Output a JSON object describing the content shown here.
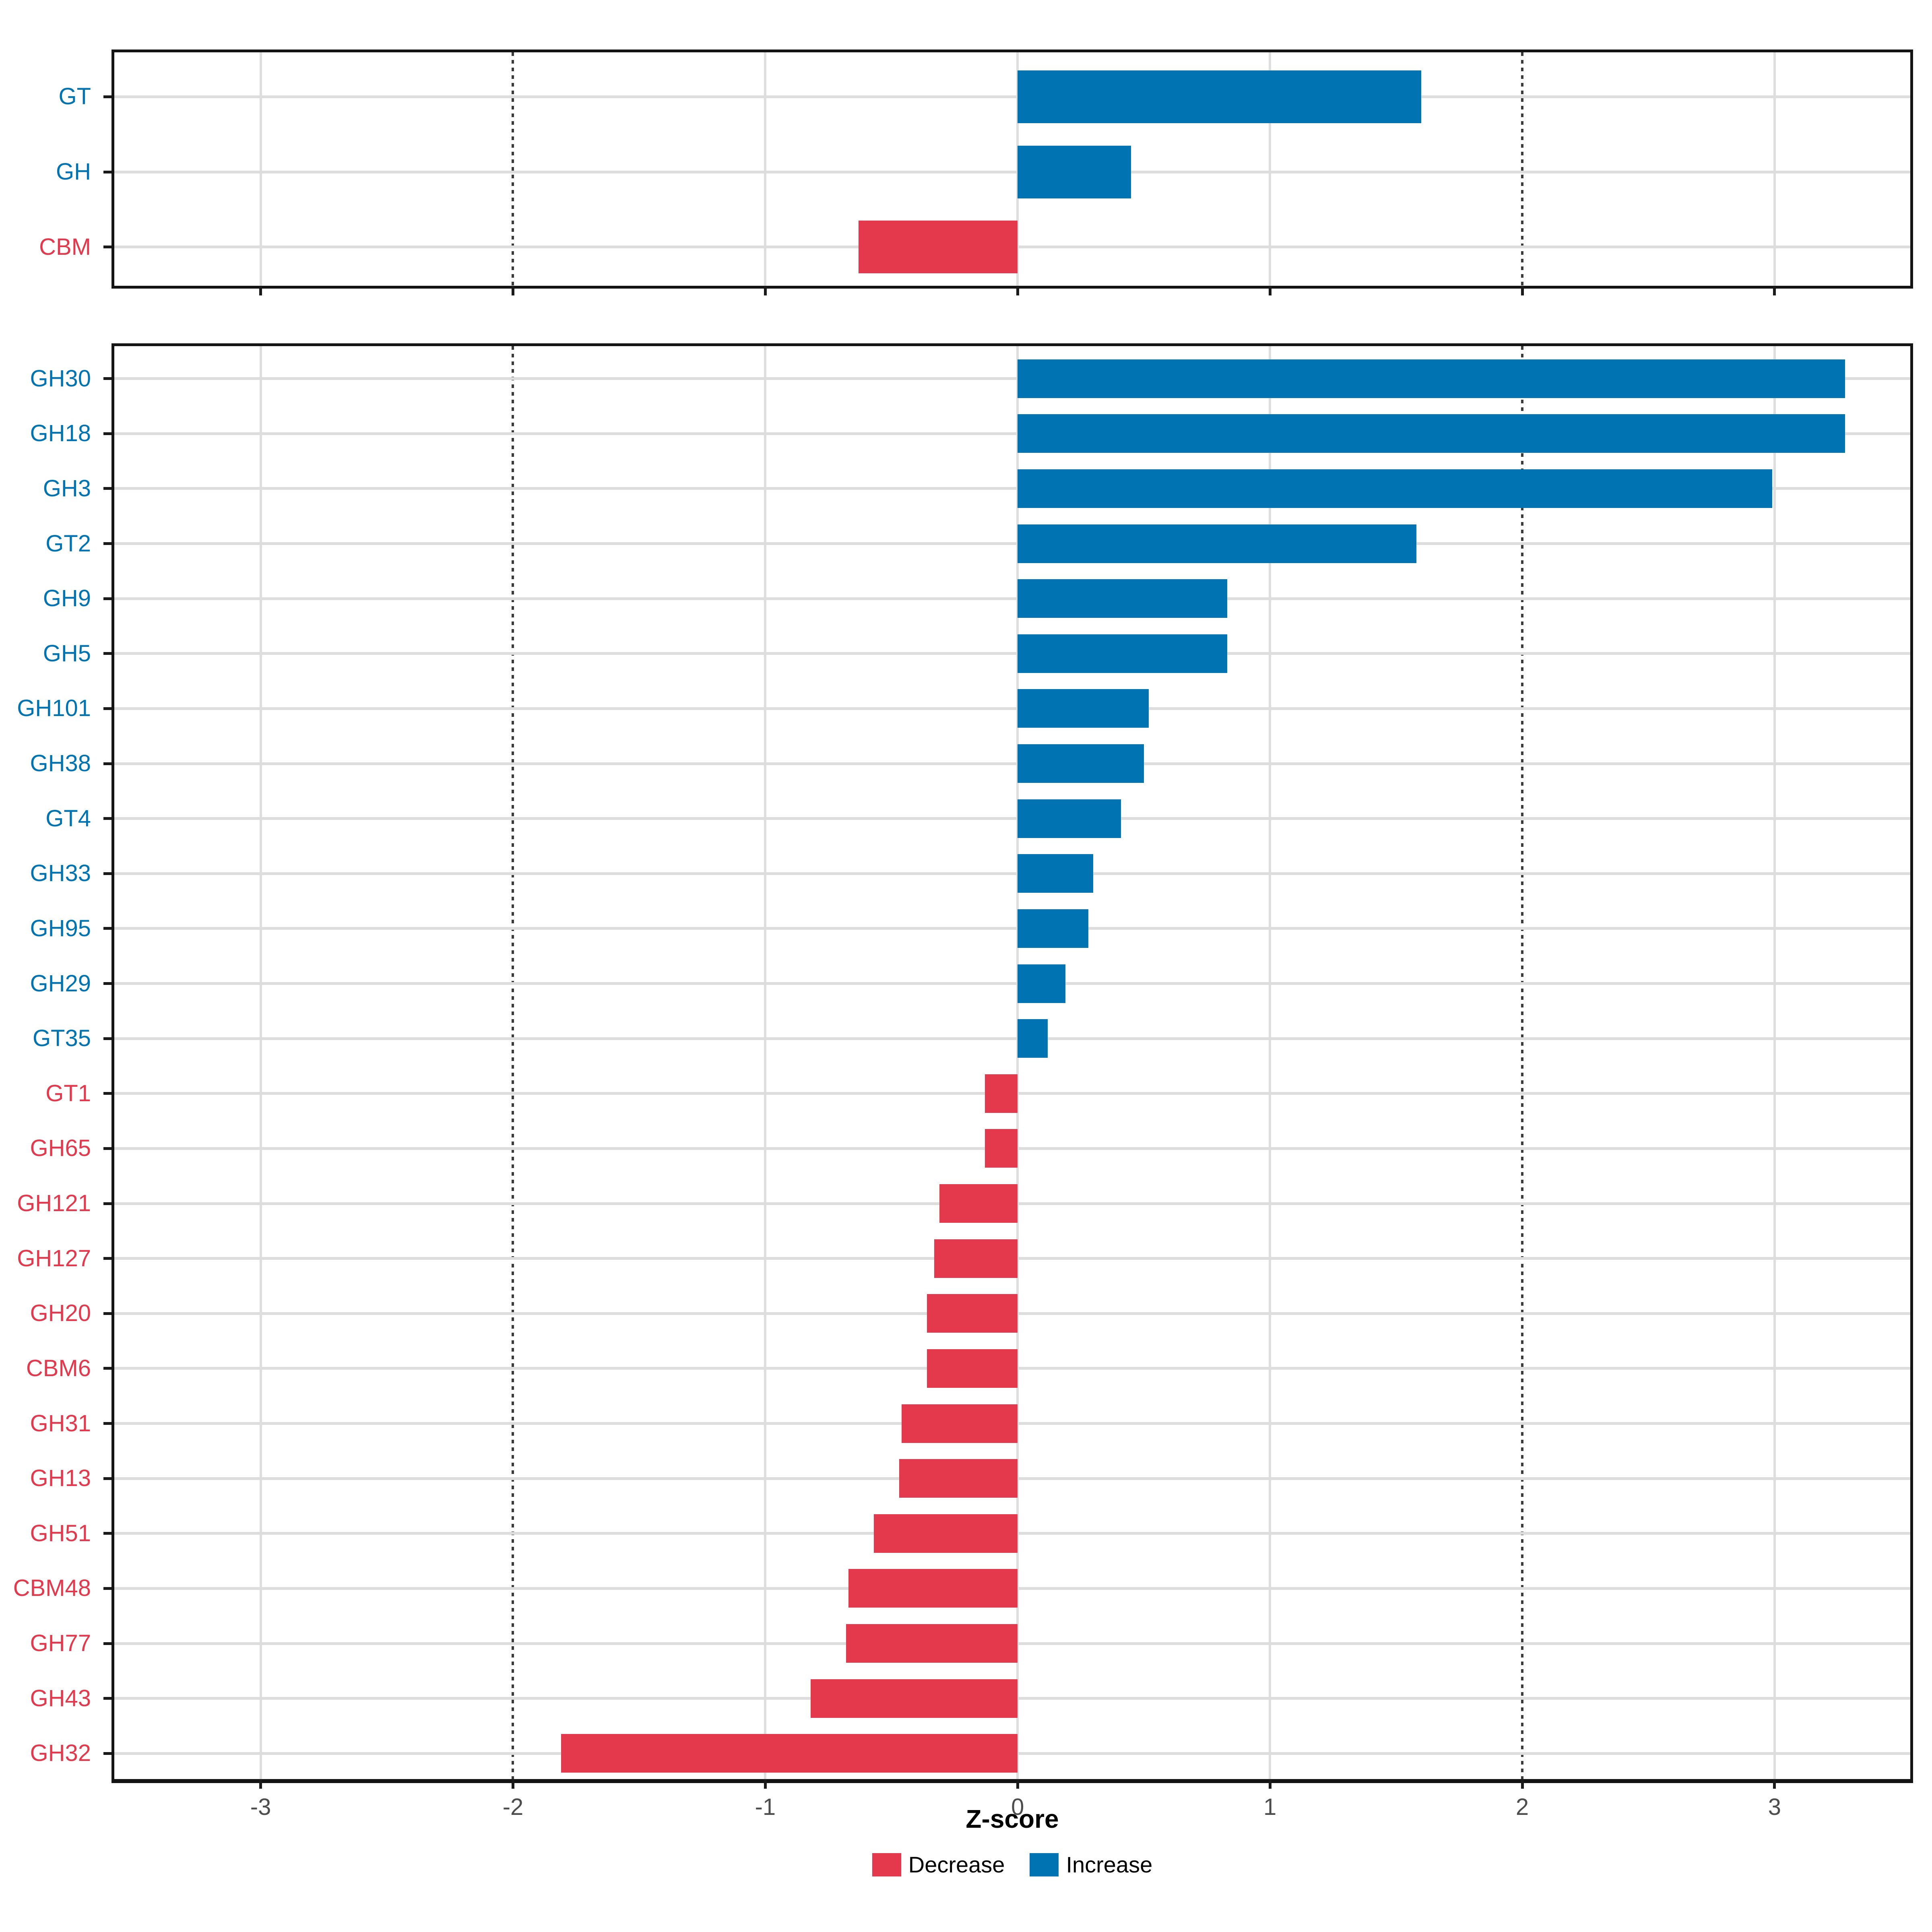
{
  "figure": {
    "xlabel": "Z-score",
    "x_ticks": [
      "-3",
      "-2",
      "-1",
      "0",
      "1",
      "2",
      "3"
    ],
    "x_tick_values": [
      -3,
      -2,
      -1,
      0,
      1,
      2,
      3
    ],
    "reference_lines": [
      -2,
      2
    ],
    "legend": {
      "decrease_label": "Decrease",
      "increase_label": "Increase"
    },
    "colors": {
      "increase": "#0073B2",
      "decrease": "#E4394C",
      "grid": "#DEDEDE",
      "reference": "#3B3B3B",
      "axis": "#1A1A1A",
      "tick_label": "#4D4D4D",
      "background": "#FFFFFF"
    }
  },
  "chart_data": [
    {
      "type": "bar",
      "title": "CAZyme categories panel",
      "orientation": "horizontal",
      "categories": [
        "GT",
        "GH",
        "CBM"
      ],
      "values": [
        1.6,
        0.45,
        -0.63
      ],
      "series_colors": [
        "increase",
        "increase",
        "decrease"
      ],
      "xlabel": "Z-score",
      "xlim": [
        -3.58,
        3.56
      ],
      "x_ticks": [
        -3,
        -2,
        -1,
        0,
        1,
        2,
        3
      ],
      "reference_lines": [
        -2,
        2
      ],
      "grid": true,
      "legend_position": "none"
    },
    {
      "type": "bar",
      "title": "CAZyme families panel",
      "orientation": "horizontal",
      "categories": [
        "GH30",
        "GH18",
        "GH3",
        "GT2",
        "GH9",
        "GH5",
        "GH101",
        "GH38",
        "GT4",
        "GH33",
        "GH95",
        "GH29",
        "GT35",
        "GT1",
        "GH65",
        "GH121",
        "GH127",
        "GH20",
        "CBM6",
        "GH31",
        "GH13",
        "GH51",
        "CBM48",
        "GH77",
        "GH43",
        "GH32"
      ],
      "values": [
        3.28,
        3.28,
        2.99,
        1.58,
        0.83,
        0.83,
        0.52,
        0.5,
        0.41,
        0.3,
        0.28,
        0.19,
        0.12,
        -0.13,
        -0.13,
        -0.31,
        -0.33,
        -0.36,
        -0.36,
        -0.46,
        -0.47,
        -0.57,
        -0.67,
        -0.68,
        -0.82,
        -1.81
      ],
      "series_colors": [
        "increase",
        "increase",
        "increase",
        "increase",
        "increase",
        "increase",
        "increase",
        "increase",
        "increase",
        "increase",
        "increase",
        "increase",
        "increase",
        "decrease",
        "decrease",
        "decrease",
        "decrease",
        "decrease",
        "decrease",
        "decrease",
        "decrease",
        "decrease",
        "decrease",
        "decrease",
        "decrease",
        "decrease"
      ],
      "xlabel": "Z-score",
      "xlim": [
        -3.58,
        3.56
      ],
      "x_ticks": [
        -3,
        -2,
        -1,
        0,
        1,
        2,
        3
      ],
      "reference_lines": [
        -2,
        2
      ],
      "grid": true,
      "legend_position": "bottom"
    }
  ]
}
